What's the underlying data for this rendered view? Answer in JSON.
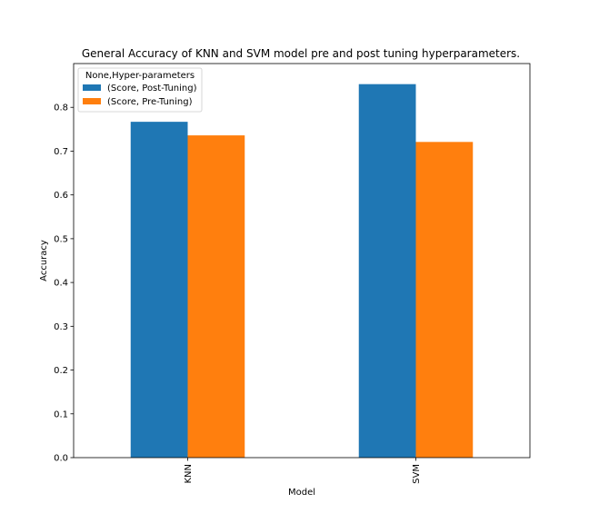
{
  "chart_data": {
    "type": "bar",
    "title": "General Accuracy of KNN and SVM model pre and post tuning hyperparameters.",
    "xlabel": "Model",
    "ylabel": "Accuracy",
    "categories": [
      "KNN",
      "SVM"
    ],
    "series": [
      {
        "name": "(Score, Post-Tuning)",
        "values": [
          0.767,
          0.853
        ],
        "color": "#1f77b4"
      },
      {
        "name": "(Score, Pre-Tuning)",
        "values": [
          0.736,
          0.721
        ],
        "color": "#ff7f0e"
      }
    ],
    "ylim": [
      0,
      0.9
    ],
    "yticks": [
      "0.0",
      "0.1",
      "0.2",
      "0.3",
      "0.4",
      "0.5",
      "0.6",
      "0.7",
      "0.8"
    ],
    "legend_title": "None,Hyper-parameters",
    "legend_position": "top-left",
    "grid": false
  }
}
